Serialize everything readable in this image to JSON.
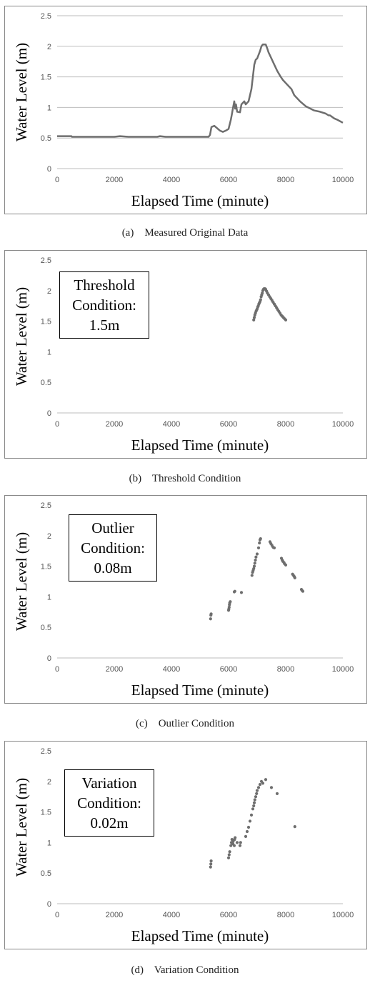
{
  "colors": {
    "series": "#6e6e6e",
    "grid": "#bdbdbd",
    "frame": "#888888"
  },
  "chart_data": [
    {
      "type": "line",
      "xlabel": "Elapsed Time (minute)",
      "ylabel": "Water Level (m)",
      "xlim": [
        0,
        10000
      ],
      "ylim": [
        0,
        2.5
      ],
      "xticks": [
        "0",
        "2000",
        "4000",
        "6000",
        "8000",
        "10000"
      ],
      "yticks": [
        "0",
        "0.5",
        "1",
        "1.5",
        "2",
        "2.5"
      ],
      "grid": "horizontal",
      "caption": "(a)    Measured Original Data",
      "annotation": [],
      "series": [
        {
          "x": [
            0,
            500,
            520,
            2000,
            2200,
            2500,
            3500,
            3600,
            3800,
            5200,
            5300,
            5350,
            5400,
            5500,
            5700,
            5800,
            5900,
            6000,
            6080,
            6120,
            6150,
            6200,
            6230,
            6260,
            6300,
            6400,
            6450,
            6550,
            6600,
            6700,
            6800,
            6850,
            6900,
            6950,
            7000,
            7100,
            7150,
            7200,
            7250,
            7300,
            7350,
            7400,
            7500,
            7600,
            7700,
            7800,
            7900,
            8000,
            8200,
            8300,
            8500,
            8700,
            9000,
            9200,
            9400,
            9500,
            9550,
            9700,
            9800,
            10000
          ],
          "y": [
            0.53,
            0.53,
            0.52,
            0.52,
            0.53,
            0.52,
            0.52,
            0.53,
            0.52,
            0.52,
            0.52,
            0.55,
            0.68,
            0.7,
            0.62,
            0.6,
            0.62,
            0.65,
            0.8,
            0.9,
            0.98,
            1.1,
            0.98,
            1.05,
            0.93,
            0.92,
            1.05,
            1.1,
            1.05,
            1.1,
            1.3,
            1.5,
            1.7,
            1.78,
            1.8,
            1.92,
            2.0,
            2.03,
            2.03,
            2.03,
            1.97,
            1.9,
            1.8,
            1.7,
            1.6,
            1.52,
            1.45,
            1.4,
            1.3,
            1.2,
            1.1,
            1.02,
            0.95,
            0.93,
            0.9,
            0.87,
            0.87,
            0.82,
            0.8,
            0.75
          ]
        }
      ]
    },
    {
      "type": "scatter",
      "xlabel": "Elapsed Time (minute)",
      "ylabel": "Water Level (m)",
      "xlim": [
        0,
        10000
      ],
      "ylim": [
        0,
        2.5
      ],
      "xticks": [
        "0",
        "2000",
        "4000",
        "6000",
        "8000",
        "10000"
      ],
      "yticks": [
        "0",
        "0.5",
        "1",
        "1.5",
        "2",
        "2.5"
      ],
      "grid": "none",
      "caption": "(b)    Threshold Condition",
      "annotation": [
        "Threshold",
        "Condition:",
        "1.5m"
      ],
      "series": [
        {
          "x": [
            6880,
            6900,
            6920,
            6940,
            6960,
            6980,
            7000,
            7020,
            7040,
            7060,
            7080,
            7100,
            7120,
            7140,
            7160,
            7180,
            7200,
            7220,
            7240,
            7260,
            7280,
            7300,
            7330,
            7360,
            7400,
            7440,
            7480,
            7520,
            7560,
            7600,
            7640,
            7680,
            7720,
            7760,
            7800,
            7840,
            7880,
            7920,
            7960,
            8000
          ],
          "y": [
            1.52,
            1.56,
            1.6,
            1.63,
            1.66,
            1.68,
            1.7,
            1.73,
            1.75,
            1.78,
            1.8,
            1.82,
            1.85,
            1.9,
            1.93,
            1.96,
            2.0,
            2.02,
            2.03,
            2.03,
            2.03,
            2.02,
            1.99,
            1.96,
            1.93,
            1.9,
            1.87,
            1.84,
            1.81,
            1.78,
            1.75,
            1.72,
            1.69,
            1.66,
            1.63,
            1.6,
            1.58,
            1.56,
            1.54,
            1.52
          ]
        }
      ]
    },
    {
      "type": "scatter",
      "xlabel": "Elapsed Time (minute)",
      "ylabel": "Water Level (m)",
      "xlim": [
        0,
        10000
      ],
      "ylim": [
        0,
        2.5
      ],
      "xticks": [
        "0",
        "2000",
        "4000",
        "6000",
        "8000",
        "10000"
      ],
      "yticks": [
        "0",
        "0.5",
        "1",
        "1.5",
        "2",
        "2.5"
      ],
      "grid": "none",
      "caption": "(c)    Outlier Condition",
      "annotation": [
        "Outlier",
        "Condition:",
        "0.08m"
      ],
      "series": [
        {
          "x": [
            5370,
            5380,
            5390,
            6000,
            6010,
            6020,
            6030,
            6040,
            6060,
            6200,
            6220,
            6450,
            6820,
            6840,
            6860,
            6880,
            6900,
            6920,
            6940,
            6960,
            7000,
            7050,
            7080,
            7100,
            7120,
            7450,
            7480,
            7520,
            7560,
            7600,
            7850,
            7880,
            7900,
            7940,
            7960,
            8000,
            8240,
            8270,
            8300,
            8320,
            8550,
            8580,
            8600
          ],
          "y": [
            0.64,
            0.7,
            0.72,
            0.78,
            0.8,
            0.83,
            0.87,
            0.9,
            0.92,
            1.08,
            1.09,
            1.07,
            1.35,
            1.4,
            1.43,
            1.46,
            1.5,
            1.55,
            1.6,
            1.65,
            1.7,
            1.8,
            1.88,
            1.93,
            1.95,
            1.9,
            1.87,
            1.84,
            1.81,
            1.8,
            1.63,
            1.6,
            1.58,
            1.56,
            1.54,
            1.52,
            1.37,
            1.35,
            1.33,
            1.31,
            1.12,
            1.1,
            1.09
          ]
        }
      ]
    },
    {
      "type": "scatter",
      "xlabel": "Elapsed Time (minute)",
      "ylabel": "Water Level (m)",
      "xlim": [
        0,
        10000
      ],
      "ylim": [
        0,
        2.5
      ],
      "xticks": [
        "0",
        "2000",
        "4000",
        "6000",
        "8000",
        "10000"
      ],
      "yticks": [
        "0",
        "0.5",
        "1",
        "1.5",
        "2",
        "2.5"
      ],
      "grid": "none",
      "caption": "(d)    Variation Condition",
      "annotation": [
        "Variation",
        "Condition:",
        "0.02m"
      ],
      "series": [
        {
          "x": [
            5370,
            5380,
            5390,
            6000,
            6020,
            6040,
            6080,
            6100,
            6120,
            6150,
            6160,
            6200,
            6210,
            6230,
            6300,
            6400,
            6420,
            6600,
            6650,
            6700,
            6750,
            6800,
            6850,
            6880,
            6900,
            6920,
            6950,
            6980,
            7000,
            7050,
            7100,
            7150,
            7200,
            7300,
            7500,
            7700,
            8320
          ],
          "y": [
            0.6,
            0.65,
            0.7,
            0.75,
            0.8,
            0.85,
            0.95,
            1.0,
            1.05,
            0.98,
            1.02,
            0.95,
            1.05,
            1.08,
            1.0,
            0.95,
            1.0,
            1.1,
            1.18,
            1.25,
            1.35,
            1.45,
            1.55,
            1.6,
            1.65,
            1.7,
            1.75,
            1.8,
            1.85,
            1.9,
            1.95,
            2.0,
            1.97,
            2.03,
            1.9,
            1.8,
            1.26
          ]
        }
      ]
    }
  ]
}
